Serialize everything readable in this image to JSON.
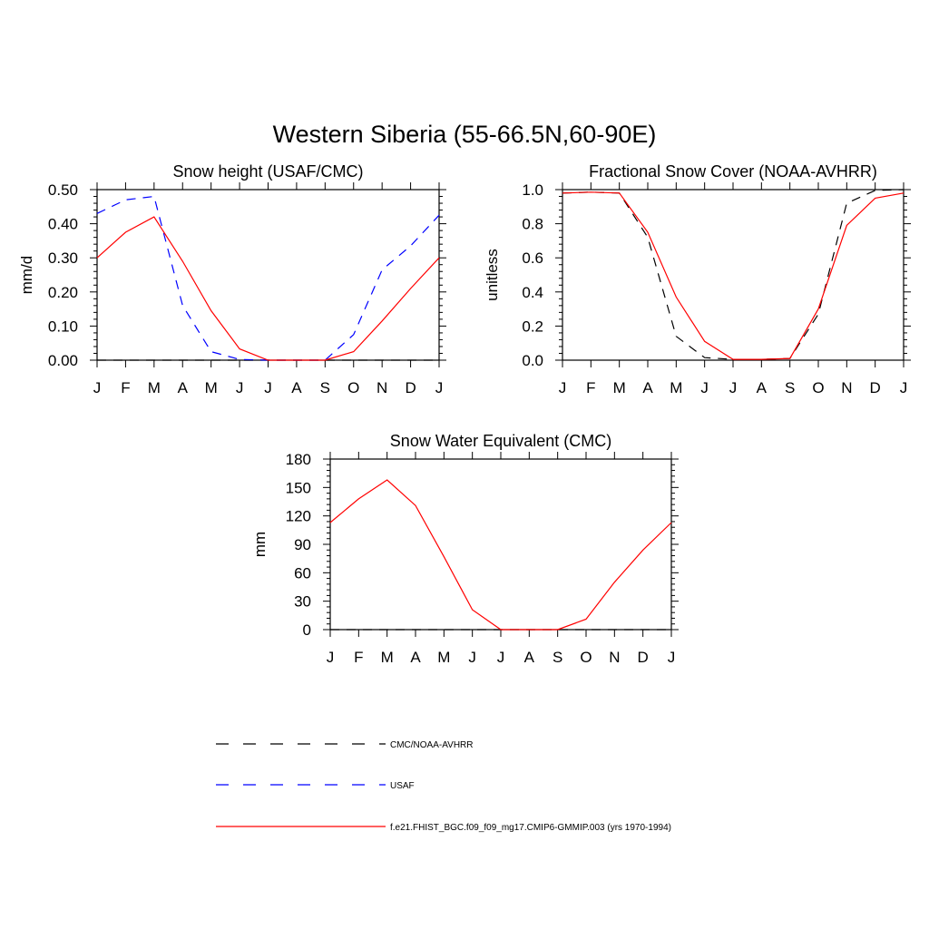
{
  "title": "Western Siberia (55-66.5N,60-90E)",
  "chart_data": [
    {
      "id": "snow-height",
      "type": "line",
      "title": "Snow height (USAF/CMC)",
      "ylabel": "mm/d",
      "xlabel": "",
      "categories": [
        "J",
        "F",
        "M",
        "A",
        "M",
        "J",
        "J",
        "A",
        "S",
        "O",
        "N",
        "D",
        "J"
      ],
      "ylim": [
        0,
        0.5
      ],
      "yticks": [
        0,
        0.1,
        0.2,
        0.3,
        0.4,
        0.5
      ],
      "ytick_labels": [
        "0.00",
        "0.10",
        "0.20",
        "0.30",
        "0.40",
        "0.50"
      ],
      "grid": false,
      "series": [
        {
          "name": "CMC/NOAA-AVHRR",
          "color": "#000000",
          "dash": "dashed",
          "values": [
            0,
            0,
            0,
            0,
            0,
            0,
            0,
            0,
            0,
            0,
            0,
            0,
            0
          ]
        },
        {
          "name": "USAF",
          "color": "#0000ff",
          "dash": "dashed",
          "values": [
            0.43,
            0.47,
            0.48,
            0.16,
            0.025,
            0.002,
            0,
            0,
            0,
            0.075,
            0.265,
            0.335,
            0.425
          ]
        },
        {
          "name": "f.e21.FHIST_BGC.f09_f09_mg17.CMIP6-GMMIP.003 (yrs 1970-1994)",
          "color": "#ff0000",
          "dash": "solid",
          "values": [
            0.3,
            0.375,
            0.42,
            0.29,
            0.145,
            0.033,
            0,
            0,
            0,
            0.025,
            0.115,
            0.21,
            0.3
          ]
        }
      ]
    },
    {
      "id": "fractional-snow-cover",
      "type": "line",
      "title": "Fractional Snow Cover (NOAA-AVHRR)",
      "ylabel": "unitless",
      "xlabel": "",
      "categories": [
        "J",
        "F",
        "M",
        "A",
        "M",
        "J",
        "J",
        "A",
        "S",
        "O",
        "N",
        "D",
        "J"
      ],
      "ylim": [
        0,
        1.0
      ],
      "yticks": [
        0,
        0.2,
        0.4,
        0.6,
        0.8,
        1.0
      ],
      "ytick_labels": [
        "0.0",
        "0.2",
        "0.4",
        "0.6",
        "0.8",
        "1.0"
      ],
      "grid": false,
      "series": [
        {
          "name": "CMC/NOAA-AVHRR",
          "color": "#000000",
          "dash": "dashed",
          "values": [
            0.98,
            0.985,
            0.98,
            0.72,
            0.14,
            0.015,
            0.005,
            0.005,
            0.01,
            0.27,
            0.92,
            0.995,
            1.0
          ]
        },
        {
          "name": "f.e21.FHIST_BGC.f09_f09_mg17.CMIP6-GMMIP.003 (yrs 1970-1994)",
          "color": "#ff0000",
          "dash": "solid",
          "values": [
            0.98,
            0.985,
            0.98,
            0.75,
            0.37,
            0.11,
            0.005,
            0.005,
            0.01,
            0.3,
            0.79,
            0.95,
            0.98
          ]
        }
      ]
    },
    {
      "id": "snow-water-equivalent",
      "type": "line",
      "title": "Snow Water Equivalent (CMC)",
      "ylabel": "mm",
      "xlabel": "",
      "categories": [
        "J",
        "F",
        "M",
        "A",
        "M",
        "J",
        "J",
        "A",
        "S",
        "O",
        "N",
        "D",
        "J"
      ],
      "ylim": [
        0,
        180
      ],
      "yticks": [
        0,
        30,
        60,
        90,
        120,
        150,
        180
      ],
      "ytick_labels": [
        "0",
        "30",
        "60",
        "90",
        "120",
        "150",
        "180"
      ],
      "grid": false,
      "series": [
        {
          "name": "CMC/NOAA-AVHRR",
          "color": "#000000",
          "dash": "dashed",
          "values": [
            0,
            0,
            0,
            0,
            0,
            0,
            0,
            0,
            0,
            0,
            0,
            0,
            0
          ]
        },
        {
          "name": "f.e21.FHIST_BGC.f09_f09_mg17.CMIP6-GMMIP.003 (yrs 1970-1994)",
          "color": "#ff0000",
          "dash": "solid",
          "values": [
            113,
            138,
            158,
            131,
            77,
            21,
            0,
            0,
            0,
            11,
            50,
            84,
            113
          ]
        }
      ]
    }
  ],
  "legend": {
    "placement": "bottom-center",
    "items": [
      {
        "label": "CMC/NOAA-AVHRR",
        "color": "#000000",
        "dash": "dashed"
      },
      {
        "label": "USAF",
        "color": "#0000ff",
        "dash": "dashed"
      },
      {
        "label": "f.e21.FHIST_BGC.f09_f09_mg17.CMIP6-GMMIP.003 (yrs 1970-1994)",
        "color": "#ff0000",
        "dash": "solid"
      }
    ]
  }
}
